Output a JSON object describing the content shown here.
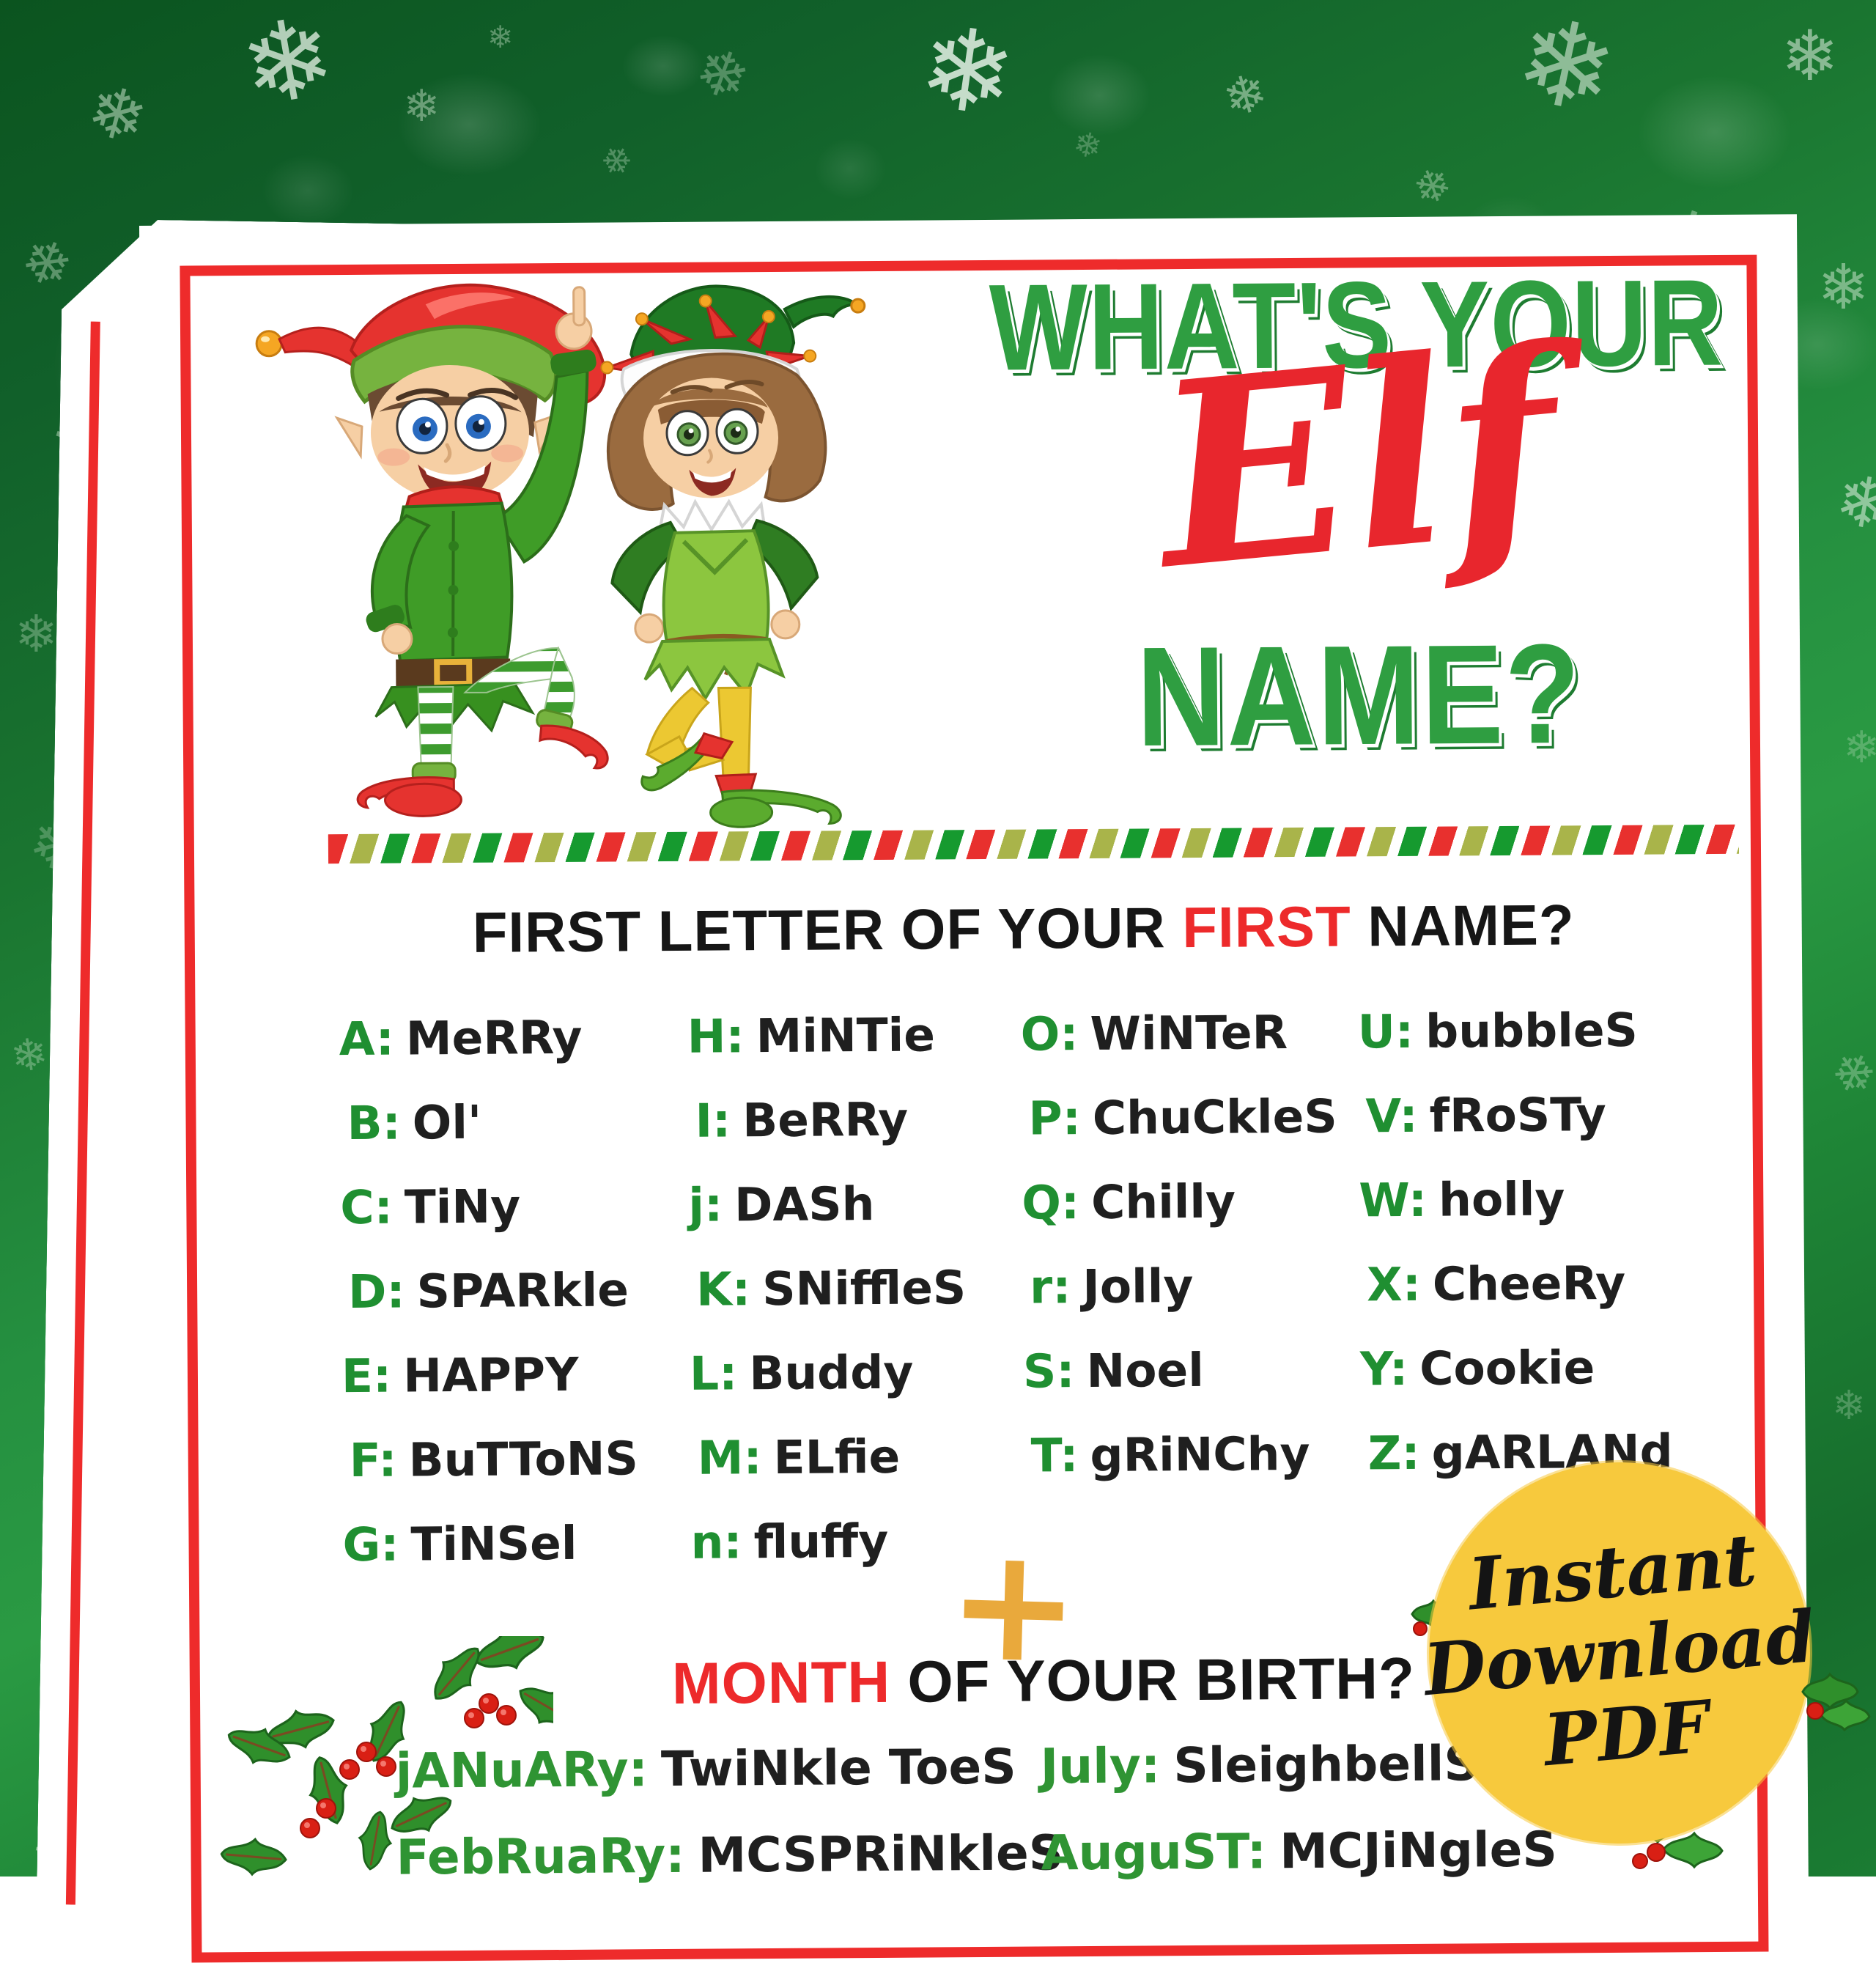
{
  "title": {
    "line1": "WHAT'S YOUR",
    "script_word": "Elf",
    "line2": "NAME?"
  },
  "section_first_letter": {
    "heading_pre": "FIRST LETTER OF YOUR ",
    "heading_accent": "FIRST",
    "heading_post": " NAME?",
    "columns": [
      [
        {
          "key": "A:",
          "name": "MeRRy"
        },
        {
          "key": "B:",
          "name": "Ol'"
        },
        {
          "key": "C:",
          "name": "TiNy"
        },
        {
          "key": "D:",
          "name": "SPARkle"
        },
        {
          "key": "E:",
          "name": "HAPPY"
        },
        {
          "key": "F:",
          "name": "BuTToNS"
        },
        {
          "key": "G:",
          "name": "TiNSel"
        }
      ],
      [
        {
          "key": "H:",
          "name": "MiNTie"
        },
        {
          "key": "I:",
          "name": "BeRRy"
        },
        {
          "key": "j:",
          "name": "DASh"
        },
        {
          "key": "K:",
          "name": "SNiffleS"
        },
        {
          "key": "L:",
          "name": "Buddy"
        },
        {
          "key": "M:",
          "name": "ELfie"
        },
        {
          "key": "n:",
          "name": "fluffy"
        }
      ],
      [
        {
          "key": "O:",
          "name": "WiNTeR"
        },
        {
          "key": "P:",
          "name": "ChuCkleS"
        },
        {
          "key": "Q:",
          "name": "Chilly"
        },
        {
          "key": "r:",
          "name": "Jolly"
        },
        {
          "key": "S:",
          "name": "Noel"
        },
        {
          "key": "T:",
          "name": "gRiNChy"
        }
      ],
      [
        {
          "key": "U:",
          "name": "bubbleS"
        },
        {
          "key": "V:",
          "name": "fRoSTy"
        },
        {
          "key": "W:",
          "name": "holly"
        },
        {
          "key": "X:",
          "name": "CheeRy"
        },
        {
          "key": "Y:",
          "name": "Cookie"
        },
        {
          "key": "Z:",
          "name": "gARLANd"
        }
      ]
    ]
  },
  "plus_sign": "+",
  "section_month": {
    "heading_accent": "MONTH",
    "heading_post": " OF YOUR BIRTH?",
    "rows": [
      [
        {
          "month": "jANuARy:",
          "name": "TwiNkle ToeS"
        },
        {
          "month": "July:",
          "name": "SleighbellS"
        }
      ],
      [
        {
          "month": "FebRuaRy:",
          "name": "MCSPRiNkleS"
        },
        {
          "month": "AuguST:",
          "name": "MCJiNgleS"
        }
      ]
    ]
  },
  "badge": {
    "line1": "Instant",
    "line2": "Download",
    "line3": "PDF"
  },
  "background": {
    "snowflake_icon": "❄"
  },
  "colors": {
    "title_green": "#2f9e41",
    "accent_red": "#ed2a2b",
    "border_red": "#ee2b2b",
    "letter_green": "#1f8f31",
    "month_green": "#2f9433",
    "text_black": "#1f1f1f",
    "badge_yellow": "#f7c93d",
    "plus_gold": "#e9a93c",
    "stripe_olive": "#a9b44a",
    "stripe_green": "#169a2f",
    "bg_green_dark": "#0b541f",
    "bg_green_mid": "#2a9a43"
  }
}
